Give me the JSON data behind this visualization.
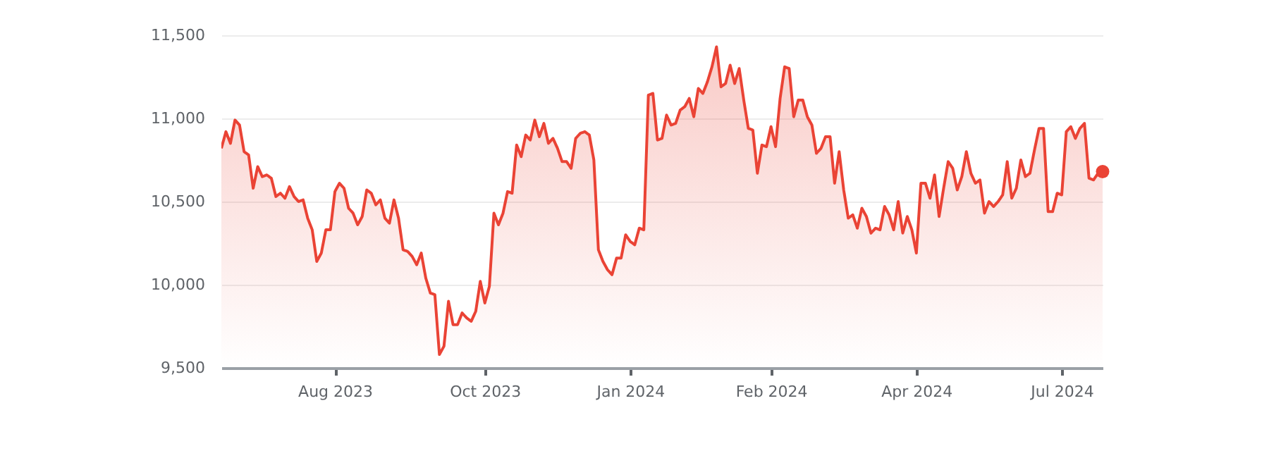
{
  "chart_data": {
    "type": "area",
    "categories": [
      null,
      null,
      null,
      null,
      null,
      null,
      null,
      null,
      null,
      null,
      null,
      null,
      null,
      null,
      null,
      null,
      null,
      null,
      null,
      null,
      null,
      null,
      null,
      null,
      null,
      "Aug 2023",
      null,
      null,
      null,
      null,
      null,
      null,
      null,
      null,
      null,
      null,
      null,
      null,
      null,
      null,
      null,
      null,
      null,
      null,
      null,
      null,
      null,
      null,
      null,
      null,
      null,
      null,
      null,
      null,
      null,
      null,
      null,
      null,
      "Oct 2023",
      null,
      null,
      null,
      null,
      null,
      null,
      null,
      null,
      null,
      null,
      null,
      null,
      null,
      null,
      null,
      null,
      null,
      null,
      null,
      null,
      null,
      null,
      null,
      null,
      null,
      null,
      null,
      null,
      null,
      null,
      null,
      "Jan 2024",
      null,
      null,
      null,
      null,
      null,
      null,
      null,
      null,
      null,
      null,
      null,
      null,
      null,
      null,
      null,
      null,
      null,
      null,
      null,
      null,
      null,
      null,
      null,
      null,
      null,
      null,
      null,
      null,
      null,
      null,
      "Feb 2024",
      null,
      null,
      null,
      null,
      null,
      null,
      null,
      null,
      null,
      null,
      null,
      null,
      null,
      null,
      null,
      null,
      null,
      null,
      null,
      null,
      null,
      null,
      null,
      null,
      null,
      null,
      null,
      null,
      null,
      null,
      null,
      "Apr 2024",
      null,
      null,
      null,
      null,
      null,
      null,
      null,
      null,
      null,
      null,
      null,
      null,
      null,
      null,
      null,
      null,
      null,
      null,
      null,
      null,
      null,
      null,
      null,
      null,
      null,
      null,
      null,
      null,
      null,
      null,
      null,
      "Jul 2024",
      null,
      null,
      null,
      null,
      null,
      null,
      null,
      null,
      null
    ],
    "ylim": [
      9500,
      11500
    ],
    "yticks": [
      {
        "value": 9500,
        "label": "9,500"
      },
      {
        "value": 10000,
        "label": "10,000"
      },
      {
        "value": 10500,
        "label": "10,500"
      },
      {
        "value": 11000,
        "label": "11,000"
      },
      {
        "value": 11500,
        "label": "11,500"
      }
    ],
    "grid": "y",
    "line_style": "solid",
    "series": [
      {
        "color": "#ea4335",
        "marker": "none",
        "values": [
          10820,
          10920,
          10850,
          10990,
          10960,
          10800,
          10780,
          10580,
          10710,
          10650,
          10660,
          10640,
          10530,
          10550,
          10520,
          10590,
          10530,
          10500,
          10510,
          10400,
          10330,
          10140,
          10190,
          10330,
          10330,
          10560,
          10610,
          10580,
          10460,
          10430,
          10360,
          10410,
          10570,
          10550,
          10480,
          10510,
          10400,
          10370,
          10510,
          10400,
          10210,
          10200,
          10170,
          10120,
          10190,
          10040,
          9950,
          9940,
          9580,
          9630,
          9900,
          9760,
          9760,
          9830,
          9800,
          9780,
          9840,
          10020,
          9890,
          9990,
          10430,
          10360,
          10430,
          10560,
          10550,
          10840,
          10770,
          10900,
          10870,
          10990,
          10890,
          10970,
          10850,
          10880,
          10820,
          10740,
          10740,
          10700,
          10880,
          10910,
          10920,
          10900,
          10750,
          10210,
          10140,
          10090,
          10060,
          10160,
          10160,
          10300,
          10260,
          10240,
          10340,
          10330,
          11140,
          11150,
          10870,
          10880,
          11020,
          10960,
          10970,
          11050,
          11070,
          11120,
          11010,
          11180,
          11150,
          11220,
          11310,
          11430,
          11190,
          11210,
          11320,
          11210,
          11300,
          11110,
          10940,
          10930,
          10670,
          10840,
          10830,
          10950,
          10830,
          11120,
          11310,
          11300,
          11010,
          11110,
          11110,
          11010,
          10960,
          10790,
          10820,
          10890,
          10890,
          10610,
          10800,
          10570,
          10400,
          10420,
          10340,
          10460,
          10410,
          10310,
          10340,
          10330,
          10470,
          10420,
          10330,
          10500,
          10310,
          10410,
          10330,
          10190,
          10610,
          10610,
          10520,
          10660,
          10410,
          10580,
          10740,
          10700,
          10570,
          10650,
          10800,
          10670,
          10610,
          10630,
          10430,
          10500,
          10470,
          10500,
          10540,
          10740,
          10520,
          10580,
          10750,
          10650,
          10670,
          10810,
          10940,
          10940,
          10440,
          10440,
          10550,
          10540,
          10920,
          10950,
          10880,
          10940,
          10970,
          10640,
          10630,
          10670,
          10680
        ]
      },
      {
        "type": "scatter",
        "color": "#ea4335",
        "marker": "circle",
        "values": [
          null,
          null,
          null,
          null,
          null,
          null,
          null,
          null,
          null,
          null,
          null,
          null,
          null,
          null,
          null,
          null,
          null,
          null,
          null,
          null,
          null,
          null,
          null,
          null,
          null,
          null,
          null,
          null,
          null,
          null,
          null,
          null,
          null,
          null,
          null,
          null,
          null,
          null,
          null,
          null,
          null,
          null,
          null,
          null,
          null,
          null,
          null,
          null,
          null,
          null,
          null,
          null,
          null,
          null,
          null,
          null,
          null,
          null,
          null,
          null,
          null,
          null,
          null,
          null,
          null,
          null,
          null,
          null,
          null,
          null,
          null,
          null,
          null,
          null,
          null,
          null,
          null,
          null,
          null,
          null,
          null,
          null,
          null,
          null,
          null,
          null,
          null,
          null,
          null,
          null,
          null,
          null,
          null,
          null,
          null,
          null,
          null,
          null,
          null,
          null,
          null,
          null,
          null,
          null,
          null,
          null,
          null,
          null,
          null,
          null,
          null,
          null,
          null,
          null,
          null,
          null,
          null,
          null,
          null,
          null,
          null,
          null,
          null,
          null,
          null,
          null,
          null,
          null,
          null,
          null,
          null,
          null,
          null,
          null,
          null,
          null,
          null,
          null,
          null,
          null,
          null,
          null,
          null,
          null,
          null,
          null,
          null,
          null,
          null,
          null,
          null,
          null,
          null,
          null,
          null,
          null,
          null,
          null,
          null,
          null,
          null,
          null,
          null,
          null,
          null,
          null,
          null,
          null,
          null,
          null,
          null,
          null,
          null,
          null,
          null,
          null,
          null,
          null,
          null,
          null,
          null,
          null,
          null,
          null,
          null,
          null,
          null,
          null,
          null,
          null,
          null,
          null,
          null,
          null,
          10680
        ]
      }
    ]
  }
}
